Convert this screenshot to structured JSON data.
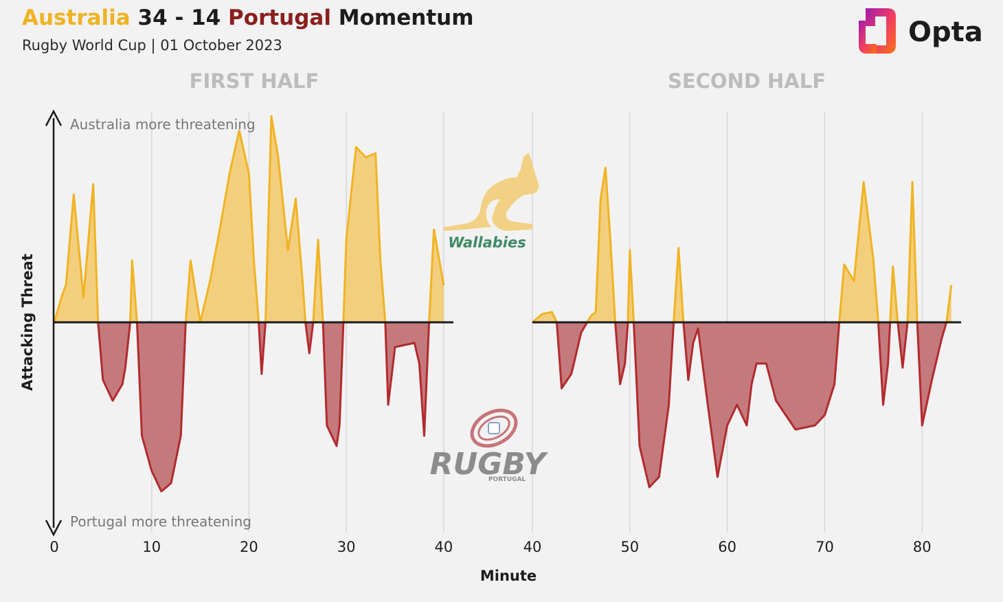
{
  "title": {
    "home": "Australia",
    "score": "34 - 14",
    "away": "Portugal",
    "suffix": "Momentum"
  },
  "subtitle": "Rugby World Cup | 01 October 2023",
  "brand": "Opta",
  "logos": {
    "home_text": "Wallabies",
    "away_text": "RUGBY",
    "away_subtext": "PORTUGAL"
  },
  "colors": {
    "home": "#f0b323",
    "home_fill": "#f3cf7d",
    "away": "#b22a2e",
    "away_fill": "#c47a7c",
    "title_away": "#8b1e1e",
    "gridline": "#dcdcdc"
  },
  "chart_data": {
    "type": "area",
    "xlabel": "Minute",
    "ylabel": "Attacking Threat",
    "annotations": {
      "top": "Australia more threatening",
      "bottom": "Portugal more threatening"
    },
    "ylim": [
      -1,
      1
    ],
    "grid": "vertical",
    "panels": [
      {
        "title": "FIRST HALF",
        "xlim": [
          0,
          41
        ],
        "xticks": [
          0,
          10,
          20,
          30,
          40
        ],
        "points": [
          [
            0,
            0
          ],
          [
            0.8,
            0.13
          ],
          [
            1.2,
            0.18
          ],
          [
            2,
            0.62
          ],
          [
            3,
            0.12
          ],
          [
            4,
            0.67
          ],
          [
            4.5,
            0
          ],
          [
            5,
            -0.28
          ],
          [
            6,
            -0.38
          ],
          [
            7,
            -0.3
          ],
          [
            7.3,
            -0.22
          ],
          [
            7.8,
            0
          ],
          [
            8,
            0.3
          ],
          [
            8.5,
            0
          ],
          [
            9,
            -0.55
          ],
          [
            10,
            -0.72
          ],
          [
            11,
            -0.82
          ],
          [
            12,
            -0.78
          ],
          [
            13,
            -0.55
          ],
          [
            13.5,
            0
          ],
          [
            14,
            0.3
          ],
          [
            15,
            0
          ],
          [
            16,
            0.2
          ],
          [
            17,
            0.45
          ],
          [
            18,
            0.72
          ],
          [
            19,
            0.93
          ],
          [
            20,
            0.72
          ],
          [
            20.5,
            0.3
          ],
          [
            21,
            0
          ],
          [
            21.3,
            -0.25
          ],
          [
            21.7,
            0
          ],
          [
            22.3,
            1.0
          ],
          [
            23,
            0.8
          ],
          [
            24,
            0.35
          ],
          [
            24.8,
            0.6
          ],
          [
            25.5,
            0.2
          ],
          [
            25.8,
            0
          ],
          [
            26.2,
            -0.15
          ],
          [
            26.6,
            0
          ],
          [
            27.1,
            0.4
          ],
          [
            27.6,
            0
          ],
          [
            28,
            -0.5
          ],
          [
            29,
            -0.6
          ],
          [
            29.3,
            -0.5
          ],
          [
            29.7,
            0
          ],
          [
            30,
            0.4
          ],
          [
            31,
            0.85
          ],
          [
            32,
            0.8
          ],
          [
            33,
            0.82
          ],
          [
            33.5,
            0.3
          ],
          [
            34,
            0
          ],
          [
            34.3,
            -0.4
          ],
          [
            35,
            -0.12
          ],
          [
            37,
            -0.1
          ],
          [
            37.5,
            -0.2
          ],
          [
            38,
            -0.55
          ],
          [
            38.5,
            0
          ],
          [
            39,
            0.45
          ],
          [
            40,
            0.18
          ]
        ]
      },
      {
        "title": "SECOND HALF",
        "xlim": [
          40,
          84
        ],
        "xticks": [
          40,
          50,
          60,
          70,
          80
        ],
        "points": [
          [
            40,
            0
          ],
          [
            41,
            0.04
          ],
          [
            42,
            0.05
          ],
          [
            42.5,
            0
          ],
          [
            43,
            -0.32
          ],
          [
            44,
            -0.25
          ],
          [
            45,
            -0.05
          ],
          [
            46,
            0.03
          ],
          [
            46.5,
            0.05
          ],
          [
            47,
            0.6
          ],
          [
            47.5,
            0.75
          ],
          [
            48,
            0.4
          ],
          [
            48.5,
            0
          ],
          [
            49,
            -0.3
          ],
          [
            49.5,
            -0.2
          ],
          [
            49.8,
            0
          ],
          [
            50,
            0.35
          ],
          [
            50.4,
            0
          ],
          [
            51,
            -0.6
          ],
          [
            52,
            -0.8
          ],
          [
            53,
            -0.75
          ],
          [
            54,
            -0.4
          ],
          [
            54.5,
            0
          ],
          [
            55,
            0.36
          ],
          [
            55.5,
            0
          ],
          [
            56,
            -0.28
          ],
          [
            56.5,
            -0.1
          ],
          [
            57,
            -0.03
          ],
          [
            58,
            -0.4
          ],
          [
            59,
            -0.75
          ],
          [
            60,
            -0.5
          ],
          [
            61,
            -0.4
          ],
          [
            62,
            -0.5
          ],
          [
            62.5,
            -0.3
          ],
          [
            63,
            -0.2
          ],
          [
            64,
            -0.2
          ],
          [
            65,
            -0.38
          ],
          [
            66,
            -0.45
          ],
          [
            67,
            -0.52
          ],
          [
            69,
            -0.5
          ],
          [
            70,
            -0.45
          ],
          [
            71,
            -0.3
          ],
          [
            71.5,
            0
          ],
          [
            72,
            0.28
          ],
          [
            73,
            0.2
          ],
          [
            74,
            0.68
          ],
          [
            75,
            0.3
          ],
          [
            75.5,
            0
          ],
          [
            76,
            -0.4
          ],
          [
            76.5,
            -0.2
          ],
          [
            77,
            0.27
          ],
          [
            77.5,
            0
          ],
          [
            78,
            -0.22
          ],
          [
            78.5,
            0
          ],
          [
            79,
            0.68
          ],
          [
            79.5,
            0
          ],
          [
            80,
            -0.5
          ],
          [
            81,
            -0.28
          ],
          [
            82,
            -0.08
          ],
          [
            82.5,
            0
          ],
          [
            83,
            0.18
          ]
        ]
      }
    ]
  }
}
